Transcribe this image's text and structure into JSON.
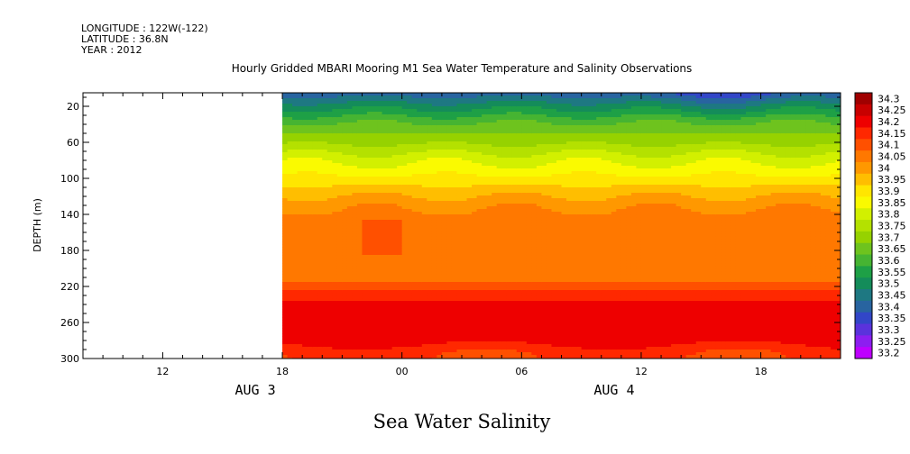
{
  "header": {
    "longitude": "LONGITUDE : 122W(-122)",
    "latitude": "LATITUDE : 36.8N",
    "year": "YEAR : 2012"
  },
  "chart_data": {
    "type": "heatmap",
    "title": "Hourly Gridded MBARI Mooring M1 Sea Water Temperature and Salinity Observations",
    "ylabel": "DEPTH (m)",
    "xlabel": "Sea Water Salinity",
    "x_unit": "hours since AUG 3 00:00, 2012",
    "xlim": [
      8,
      46
    ],
    "ylim": [
      300,
      5
    ],
    "y_reversed": true,
    "data_start_hour": 18,
    "x_ticks": [
      {
        "value": 12,
        "label": "12"
      },
      {
        "value": 24,
        "label": "00"
      },
      {
        "value": 30,
        "label": "06"
      },
      {
        "value": 36,
        "label": "12"
      },
      {
        "value": 42,
        "label": "18"
      }
    ],
    "x_ticks_extra": [
      {
        "value": 18,
        "label": "18"
      }
    ],
    "date_labels": [
      {
        "value": 18,
        "label": "AUG  3"
      },
      {
        "value": 36,
        "label": "AUG  4"
      }
    ],
    "y_ticks": [
      20,
      60,
      100,
      140,
      180,
      220,
      260,
      300
    ],
    "levels": [
      {
        "value": "34.3",
        "color": "#a00000"
      },
      {
        "value": "34.25",
        "color": "#c80000"
      },
      {
        "value": "34.2",
        "color": "#ee0000"
      },
      {
        "value": "34.15",
        "color": "#ff2800"
      },
      {
        "value": "34.1",
        "color": "#ff5000"
      },
      {
        "value": "34.05",
        "color": "#ff7800"
      },
      {
        "value": "34",
        "color": "#ff9800"
      },
      {
        "value": "33.95",
        "color": "#ffbe00"
      },
      {
        "value": "33.9",
        "color": "#ffe600"
      },
      {
        "value": "33.85",
        "color": "#fafa00"
      },
      {
        "value": "33.8",
        "color": "#d2f000"
      },
      {
        "value": "33.75",
        "color": "#b4e100"
      },
      {
        "value": "33.7",
        "color": "#96d200"
      },
      {
        "value": "33.65",
        "color": "#6ec31e"
      },
      {
        "value": "33.6",
        "color": "#46b432"
      },
      {
        "value": "33.55",
        "color": "#1ea046"
      },
      {
        "value": "33.5",
        "color": "#148c5a"
      },
      {
        "value": "33.45",
        "color": "#1e7882"
      },
      {
        "value": "33.4",
        "color": "#2864a0"
      },
      {
        "value": "33.35",
        "color": "#3246c8"
      },
      {
        "value": "33.3",
        "color": "#5a32dc"
      },
      {
        "value": "33.25",
        "color": "#8c1ef0"
      },
      {
        "value": "33.2",
        "color": "#be00ff"
      }
    ],
    "depth_profile": [
      {
        "depth": 5,
        "salinity": 33.42
      },
      {
        "depth": 12,
        "salinity": 33.47
      },
      {
        "depth": 20,
        "salinity": 33.53
      },
      {
        "depth": 28,
        "salinity": 33.58
      },
      {
        "depth": 35,
        "salinity": 33.63
      },
      {
        "depth": 45,
        "salinity": 33.68
      },
      {
        "depth": 58,
        "salinity": 33.73
      },
      {
        "depth": 68,
        "salinity": 33.78
      },
      {
        "depth": 78,
        "salinity": 33.83
      },
      {
        "depth": 92,
        "salinity": 33.88
      },
      {
        "depth": 104,
        "salinity": 33.93
      },
      {
        "depth": 114,
        "salinity": 33.98
      },
      {
        "depth": 128,
        "salinity": 34.03
      },
      {
        "depth": 142,
        "salinity": 34.07
      },
      {
        "depth": 210,
        "salinity": 34.07
      },
      {
        "depth": 220,
        "salinity": 34.13
      },
      {
        "depth": 233,
        "salinity": 34.18
      },
      {
        "depth": 240,
        "salinity": 34.23
      },
      {
        "depth": 282,
        "salinity": 34.24
      },
      {
        "depth": 292,
        "salinity": 34.19
      },
      {
        "depth": 300,
        "salinity": 34.18
      }
    ]
  }
}
